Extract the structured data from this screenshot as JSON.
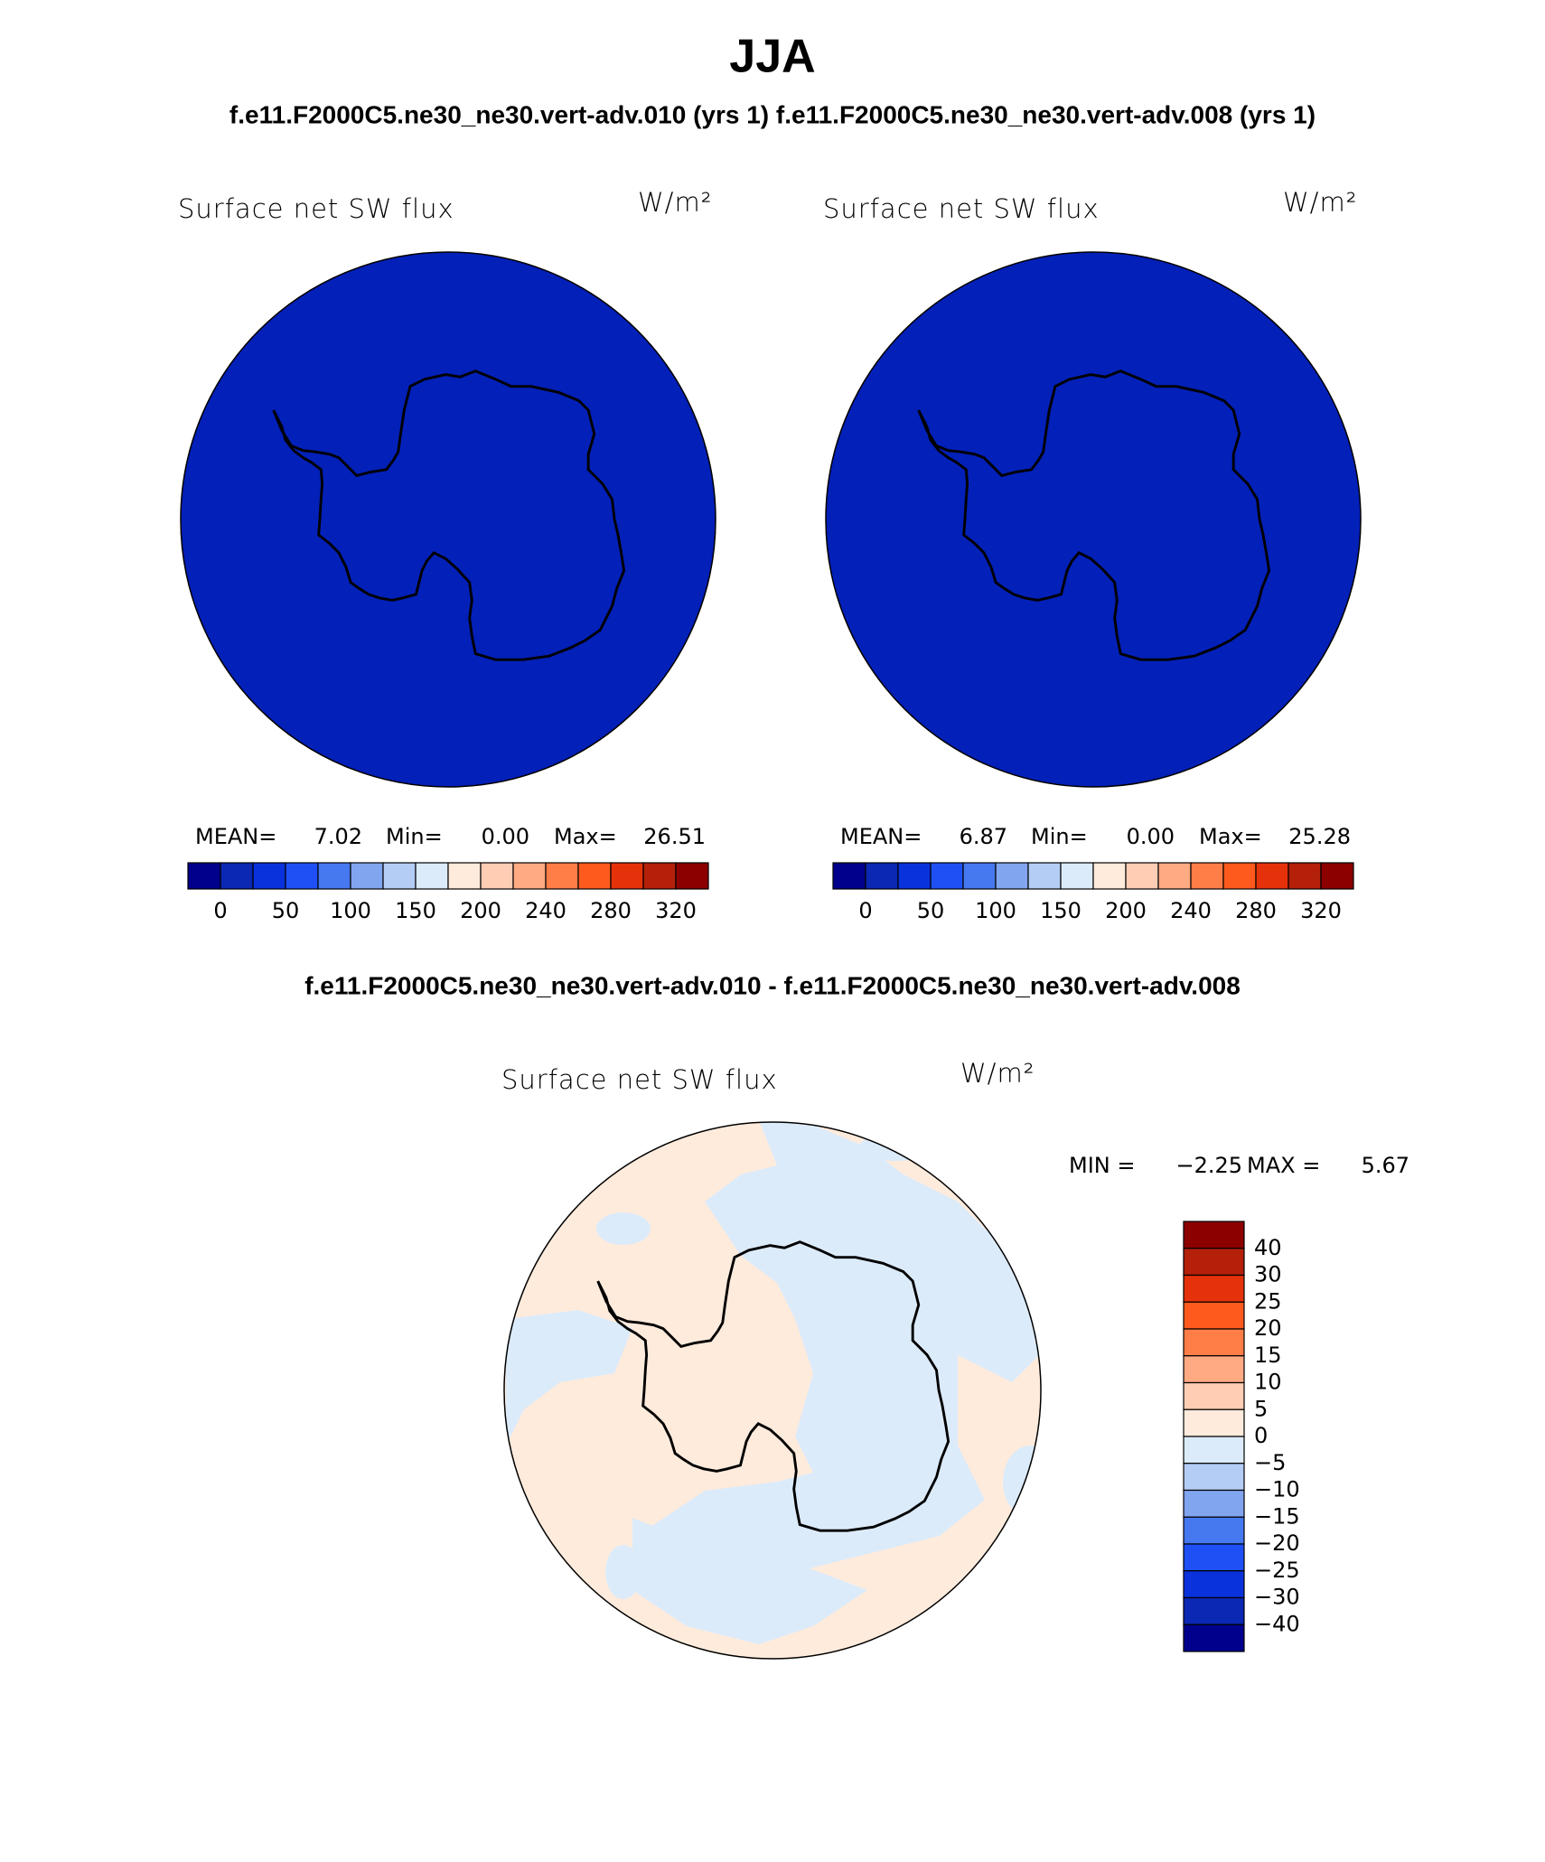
{
  "title": "JJA",
  "subtitle": "f.e11.F2000C5.ne30_ne30.vert-adv.010 (yrs 1) f.e11.F2000C5.ne30_ne30.vert-adv.008 (yrs 1)",
  "panels": [
    {
      "label": "Surface net SW flux",
      "units": "W/m²",
      "fill": "#0320b8",
      "stats": {
        "mean_label": "MEAN=",
        "mean": "7.02",
        "min_label": "Min=",
        "min": "0.00",
        "max_label": "Max=",
        "max": "26.51"
      },
      "colorbar": {
        "colors": [
          "#00008c",
          "#0a28b4",
          "#0a32dc",
          "#1e50f5",
          "#4678f0",
          "#82a5f0",
          "#b4cdf5",
          "#dcebfa",
          "#ffebdc",
          "#ffcdb4",
          "#ffaa82",
          "#ff7d46",
          "#ff5a1e",
          "#e6320a",
          "#b4200a",
          "#8c0000"
        ],
        "labels": [
          "0",
          "50",
          "100",
          "150",
          "200",
          "240",
          "280",
          "320"
        ]
      }
    },
    {
      "label": "Surface net SW flux",
      "units": "W/m²",
      "fill": "#0320b8",
      "stats": {
        "mean_label": "MEAN=",
        "mean": "6.87",
        "min_label": "Min=",
        "min": "0.00",
        "max_label": "Max=",
        "max": "25.28"
      },
      "colorbar": {
        "colors": [
          "#00008c",
          "#0a28b4",
          "#0a32dc",
          "#1e50f5",
          "#4678f0",
          "#82a5f0",
          "#b4cdf5",
          "#dcebfa",
          "#ffebdc",
          "#ffcdb4",
          "#ffaa82",
          "#ff7d46",
          "#ff5a1e",
          "#e6320a",
          "#b4200a",
          "#8c0000"
        ],
        "labels": [
          "0",
          "50",
          "100",
          "150",
          "200",
          "240",
          "280",
          "320"
        ]
      }
    }
  ],
  "difference": {
    "title": "f.e11.F2000C5.ne30_ne30.vert-adv.010 - f.e11.F2000C5.ne30_ne30.vert-adv.008",
    "label": "Surface net SW flux",
    "units": "W/m²",
    "stats": {
      "min_label": "MIN =",
      "min": "−2.25",
      "max_label": "MAX =",
      "max": "5.67"
    },
    "colorbar": {
      "colors": [
        "#8c0000",
        "#b4200a",
        "#e6320a",
        "#ff5a1e",
        "#ff7d46",
        "#ffaa82",
        "#ffcdb4",
        "#ffebdc",
        "#dcebfa",
        "#b4cdf5",
        "#82a5f0",
        "#4678f0",
        "#1e50f5",
        "#0a32dc",
        "#0a28b4",
        "#00008c"
      ],
      "labels": [
        "40",
        "30",
        "25",
        "20",
        "15",
        "10",
        "5",
        "0",
        "−5",
        "−10",
        "−15",
        "−20",
        "−25",
        "−30",
        "−40"
      ]
    }
  }
}
